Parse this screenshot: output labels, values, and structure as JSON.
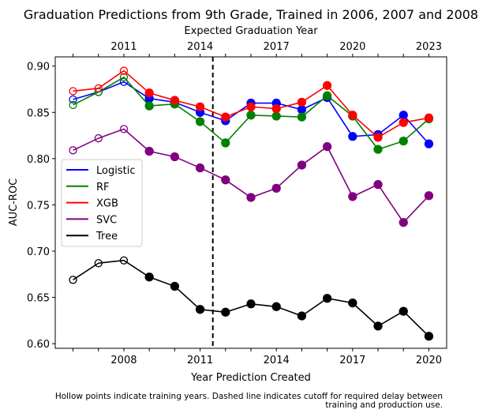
{
  "chart_data": {
    "type": "line",
    "title": "Graduation Predictions from 9th Grade, Trained in 2006, 2007 and 2008",
    "xlabel": "Year Prediction Created",
    "ylabel": "AUC-ROC",
    "top_xlabel": "Expected Graduation Year",
    "x": [
      2006,
      2007,
      2008,
      2009,
      2010,
      2011,
      2012,
      2013,
      2014,
      2015,
      2016,
      2017,
      2018,
      2019,
      2020
    ],
    "xlim": [
      2005.3,
      2020.7
    ],
    "ylim": [
      0.595,
      0.91
    ],
    "xticks": [
      2008,
      2011,
      2014,
      2017,
      2020
    ],
    "top_xticks": [
      2011,
      2014,
      2017,
      2020,
      2023
    ],
    "yticks": [
      0.6,
      0.65,
      0.7,
      0.75,
      0.8,
      0.85,
      0.9
    ],
    "training_years": [
      2006,
      2007,
      2008
    ],
    "cutoff_x": 2011.5,
    "grid": false,
    "legend_placement": "center-left",
    "series": [
      {
        "name": "Logistic",
        "color": "#0000ff",
        "values": [
          0.864,
          0.872,
          0.883,
          0.865,
          0.861,
          0.85,
          0.841,
          0.86,
          0.86,
          0.853,
          0.866,
          0.824,
          0.826,
          0.847,
          0.816
        ]
      },
      {
        "name": "RF",
        "color": "#008000",
        "values": [
          0.858,
          0.872,
          0.888,
          0.857,
          0.859,
          0.84,
          0.817,
          0.847,
          0.846,
          0.845,
          0.868,
          0.846,
          0.81,
          0.819,
          0.843
        ]
      },
      {
        "name": "XGB",
        "color": "#ff0000",
        "values": [
          0.873,
          0.876,
          0.895,
          0.871,
          0.863,
          0.856,
          0.845,
          0.856,
          0.854,
          0.861,
          0.879,
          0.847,
          0.823,
          0.839,
          0.844
        ]
      },
      {
        "name": "SVC",
        "color": "#800080",
        "values": [
          0.809,
          0.822,
          0.832,
          0.808,
          0.802,
          0.79,
          0.777,
          0.758,
          0.768,
          0.793,
          0.813,
          0.759,
          0.772,
          0.731,
          0.76
        ]
      },
      {
        "name": "Tree",
        "color": "#000000",
        "values": [
          0.669,
          0.687,
          0.69,
          0.672,
          0.662,
          0.637,
          0.634,
          0.643,
          0.64,
          0.63,
          0.649,
          0.644,
          0.619,
          0.635,
          0.608
        ]
      }
    ],
    "caption_line1": "Hollow points indicate training years. Dashed line indicates cutoff for required delay between",
    "caption_line2": "training and production use."
  }
}
